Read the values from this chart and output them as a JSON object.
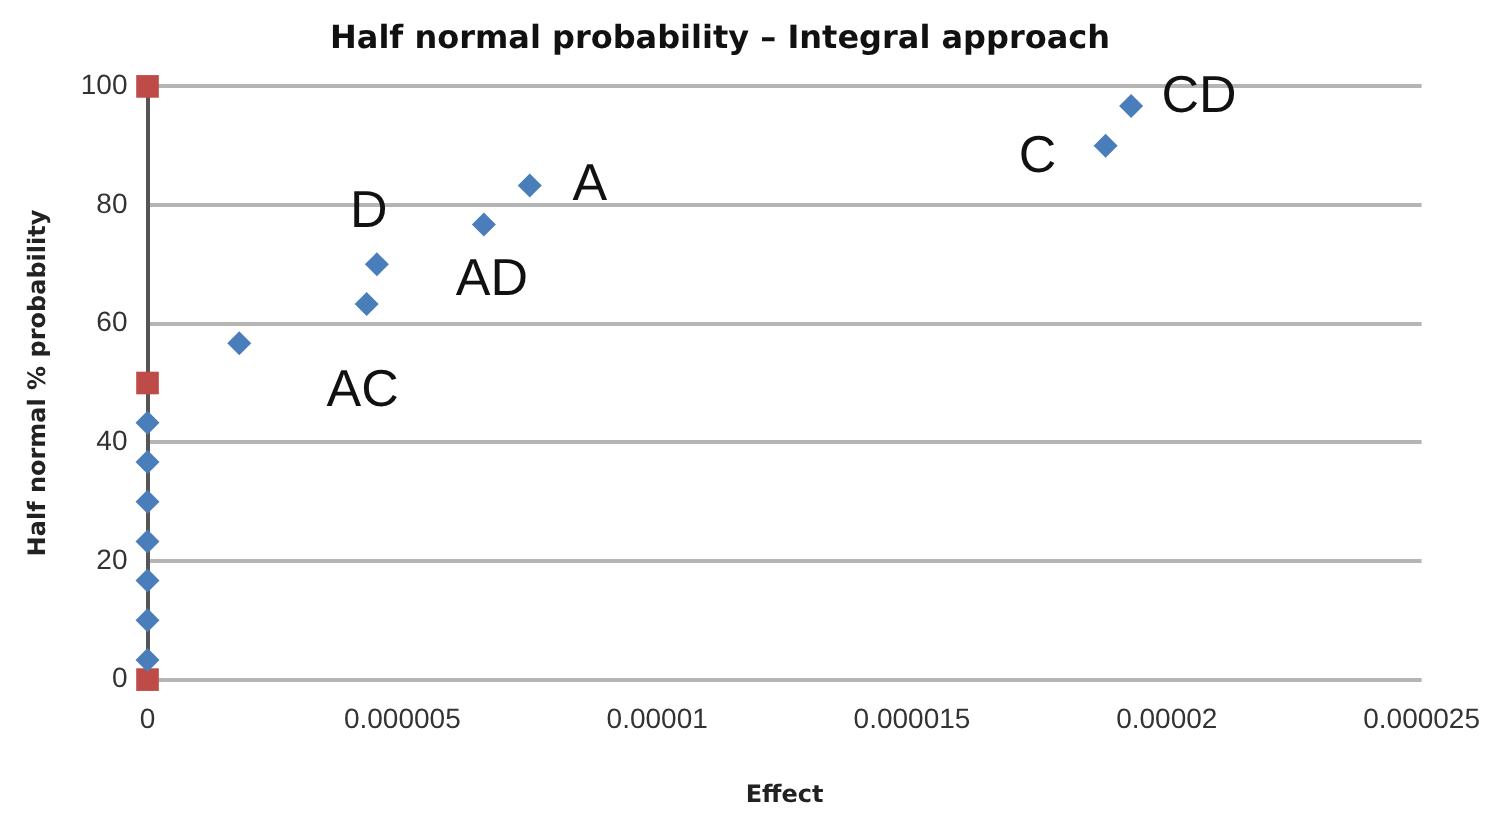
{
  "chart_data": {
    "type": "scatter",
    "title": "Half normal probability – Integral approach",
    "xlabel": "Effect",
    "ylabel": "Half normal % probability",
    "xlim": [
      0,
      2.5e-05
    ],
    "xticks": [
      0,
      {
        "value": 5e-06,
        "label": "0.000005"
      },
      {
        "value": 1e-05,
        "label": "0.00001"
      },
      {
        "value": 1.5e-05,
        "label": "0.000015"
      },
      {
        "value": 2e-05,
        "label": "0.00002"
      },
      {
        "value": 2.5e-05,
        "label": "0.000025"
      }
    ],
    "ylim": [
      0,
      100
    ],
    "yticks": [
      0,
      20,
      40,
      60,
      80,
      100
    ],
    "grid": "y",
    "legend": false,
    "marker": "diamond",
    "series": [
      {
        "color": "#4a7ebb",
        "x": [
          0,
          0,
          0,
          0,
          0,
          0,
          0,
          1.8e-06,
          4.3e-06,
          4.5e-06,
          6.6e-06,
          7.5e-06,
          1.88e-05,
          1.93e-05
        ],
        "values": [
          3.3,
          10,
          16.7,
          23.3,
          30,
          36.7,
          43.3,
          56.7,
          63.3,
          70,
          76.7,
          83.3,
          90,
          96.7
        ]
      },
      {
        "color": "#be4b48",
        "marker": "square",
        "x": [
          0,
          0,
          0
        ],
        "values": [
          0,
          50,
          100
        ]
      }
    ],
    "annotations": [
      {
        "text": "D",
        "x": 4.5e-06,
        "y": 70
      },
      {
        "text": "AC",
        "x": 4.3e-06,
        "y": 63.3
      },
      {
        "text": "AD",
        "x": 6.6e-06,
        "y": 76.7
      },
      {
        "text": "A",
        "x": 7.5e-06,
        "y": 83.3
      },
      {
        "text": "C",
        "x": 1.88e-05,
        "y": 90
      },
      {
        "text": "CD",
        "x": 1.93e-05,
        "y": 96.7
      }
    ]
  }
}
